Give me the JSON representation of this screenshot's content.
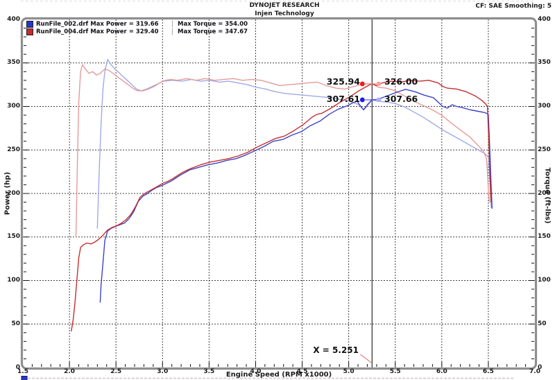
{
  "header": {
    "title": "DYNOJET RESEARCH",
    "subtitle": "Injen Technology",
    "correction": "CF: SAE  Smoothing: 5"
  },
  "legend": {
    "rows": [
      {
        "color": "#2a35c8",
        "file": "RunFile_002.drf",
        "max_power": "Max Power = 319.66",
        "max_torque": "Max Torque = 354.00"
      },
      {
        "color": "#cc2a2a",
        "file": "RunFile_004.drf",
        "max_power": "Max Power = 329.40",
        "max_torque": "Max Torque = 347.67"
      }
    ]
  },
  "chart_data": {
    "type": "line",
    "title": "",
    "x_axis": {
      "label": "Engine Speed (RPM x1000)",
      "min": 1.5,
      "max": 7.0,
      "major_step": 0.5,
      "minor_step": 0.1,
      "ticks": [
        "1.5",
        "2.0",
        "2.5",
        "3.0",
        "3.5",
        "4.0",
        "4.5",
        "5.0",
        "5.5",
        "6.0",
        "6.5",
        "7.0"
      ]
    },
    "y_axis_left": {
      "label": "Power (hp)",
      "min": 0,
      "max": 400,
      "major_step": 50,
      "minor_step": 10,
      "ticks": [
        "400",
        "350",
        "300",
        "250",
        "200",
        "150",
        "100",
        "50",
        "0"
      ]
    },
    "y_axis_right": {
      "label": "Torque (ft-lbs)",
      "min": 0,
      "max": 400,
      "major_step": 50,
      "minor_step": 10,
      "ticks": [
        "400",
        "350",
        "300",
        "250",
        "200",
        "150",
        "100",
        "50",
        "0"
      ]
    },
    "grid": "dashed major gridlines, both axes",
    "cursor": {
      "x": 5.251,
      "label": "X = 5.251",
      "readouts": [
        {
          "series": "RunFile_004.drf power (hp)",
          "value": 325.94,
          "display": "325.94",
          "dot_color": "#ee1c1c",
          "side": "left"
        },
        {
          "series": "RunFile_004.drf torque (ft-lbs)",
          "value": 326.0,
          "display": "326.00",
          "dot_color": "#f2a2a2",
          "side": "right"
        },
        {
          "series": "RunFile_002.drf power (hp)",
          "value": 307.61,
          "display": "307.61",
          "dot_color": "#1c1cee",
          "side": "left"
        },
        {
          "series": "RunFile_002.drf torque (ft-lbs)",
          "value": 307.66,
          "display": "307.66",
          "dot_color": "#a8b4f5",
          "side": "right"
        }
      ]
    },
    "series": [
      {
        "name": "RunFile_002.drf Torque",
        "unit": "ft-lbs",
        "max": 354.0,
        "color": "#9fa9e6",
        "points": [
          [
            2.3,
            160
          ],
          [
            2.32,
            225
          ],
          [
            2.34,
            280
          ],
          [
            2.36,
            320
          ],
          [
            2.38,
            340
          ],
          [
            2.41,
            354
          ],
          [
            2.44,
            349
          ],
          [
            2.48,
            344
          ],
          [
            2.52,
            340
          ],
          [
            2.56,
            336
          ],
          [
            2.6,
            332
          ],
          [
            2.64,
            328
          ],
          [
            2.68,
            324
          ],
          [
            2.72,
            320
          ],
          [
            2.77,
            318
          ],
          [
            2.83,
            320
          ],
          [
            2.89,
            323
          ],
          [
            2.95,
            326
          ],
          [
            3.01,
            329
          ],
          [
            3.11,
            330
          ],
          [
            3.21,
            329
          ],
          [
            3.31,
            331
          ],
          [
            3.41,
            329
          ],
          [
            3.51,
            330
          ],
          [
            3.61,
            328
          ],
          [
            3.71,
            329
          ],
          [
            3.81,
            327
          ],
          [
            3.91,
            325
          ],
          [
            4.01,
            322
          ],
          [
            4.11,
            320
          ],
          [
            4.21,
            317
          ],
          [
            4.31,
            315
          ],
          [
            4.41,
            314
          ],
          [
            4.51,
            313
          ],
          [
            4.61,
            312
          ],
          [
            4.71,
            311
          ],
          [
            4.81,
            310
          ],
          [
            4.91,
            308
          ],
          [
            5.01,
            306
          ],
          [
            5.06,
            304
          ],
          [
            5.11,
            302
          ],
          [
            5.14,
            298
          ],
          [
            5.17,
            297
          ],
          [
            5.21,
            302
          ],
          [
            5.251,
            307.66
          ],
          [
            5.31,
            306
          ],
          [
            5.41,
            305
          ],
          [
            5.51,
            303
          ],
          [
            5.61,
            299
          ],
          [
            5.71,
            293
          ],
          [
            5.81,
            287
          ],
          [
            5.91,
            280
          ],
          [
            6.01,
            273
          ],
          [
            6.11,
            267
          ],
          [
            6.21,
            261
          ],
          [
            6.31,
            255
          ],
          [
            6.41,
            249
          ],
          [
            6.46,
            246
          ],
          [
            6.5,
            242
          ],
          [
            6.51,
            228
          ],
          [
            6.52,
            208
          ],
          [
            6.53,
            184
          ]
        ]
      },
      {
        "name": "RunFile_004.drf Torque",
        "unit": "ft-lbs",
        "max": 347.67,
        "color": "#e69a9a",
        "points": [
          [
            2.07,
            150
          ],
          [
            2.08,
            205
          ],
          [
            2.09,
            258
          ],
          [
            2.1,
            305
          ],
          [
            2.12,
            340
          ],
          [
            2.14,
            348
          ],
          [
            2.17,
            343
          ],
          [
            2.21,
            338
          ],
          [
            2.25,
            340
          ],
          [
            2.29,
            336
          ],
          [
            2.33,
            338
          ],
          [
            2.38,
            343
          ],
          [
            2.43,
            341
          ],
          [
            2.48,
            337
          ],
          [
            2.53,
            333
          ],
          [
            2.58,
            329
          ],
          [
            2.63,
            325
          ],
          [
            2.68,
            321
          ],
          [
            2.73,
            318
          ],
          [
            2.79,
            318
          ],
          [
            2.85,
            320
          ],
          [
            2.91,
            323
          ],
          [
            2.97,
            327
          ],
          [
            3.03,
            330
          ],
          [
            3.09,
            331
          ],
          [
            3.16,
            330
          ],
          [
            3.26,
            332
          ],
          [
            3.36,
            330
          ],
          [
            3.46,
            332
          ],
          [
            3.56,
            330
          ],
          [
            3.66,
            331
          ],
          [
            3.76,
            332
          ],
          [
            3.86,
            330
          ],
          [
            3.96,
            331
          ],
          [
            4.06,
            330
          ],
          [
            4.16,
            327
          ],
          [
            4.26,
            324
          ],
          [
            4.36,
            325
          ],
          [
            4.46,
            326
          ],
          [
            4.56,
            327
          ],
          [
            4.66,
            328
          ],
          [
            4.76,
            324
          ],
          [
            4.86,
            321
          ],
          [
            4.96,
            320
          ],
          [
            5.06,
            323
          ],
          [
            5.16,
            326
          ],
          [
            5.251,
            326
          ],
          [
            5.32,
            322
          ],
          [
            5.4,
            321
          ],
          [
            5.5,
            318
          ],
          [
            5.6,
            312
          ],
          [
            5.7,
            306
          ],
          [
            5.8,
            301
          ],
          [
            5.9,
            296
          ],
          [
            6.0,
            290
          ],
          [
            6.1,
            281
          ],
          [
            6.2,
            273
          ],
          [
            6.3,
            265
          ],
          [
            6.4,
            254
          ],
          [
            6.45,
            248
          ],
          [
            6.48,
            240
          ],
          [
            6.49,
            225
          ],
          [
            6.5,
            205
          ],
          [
            6.51,
            190
          ]
        ]
      },
      {
        "name": "RunFile_002.drf Power",
        "unit": "hp",
        "max": 319.66,
        "color": "#3d42c4",
        "points": [
          [
            2.33,
            75
          ],
          [
            2.34,
            95
          ],
          [
            2.36,
            120
          ],
          [
            2.38,
            146
          ],
          [
            2.41,
            157
          ],
          [
            2.45,
            160
          ],
          [
            2.49,
            162
          ],
          [
            2.54,
            164
          ],
          [
            2.59,
            166
          ],
          [
            2.64,
            171
          ],
          [
            2.69,
            179
          ],
          [
            2.74,
            191
          ],
          [
            2.79,
            197
          ],
          [
            2.84,
            200
          ],
          [
            2.89,
            204
          ],
          [
            2.94,
            207
          ],
          [
            2.99,
            209
          ],
          [
            3.09,
            214
          ],
          [
            3.19,
            221
          ],
          [
            3.29,
            227
          ],
          [
            3.39,
            230
          ],
          [
            3.49,
            233
          ],
          [
            3.59,
            235
          ],
          [
            3.69,
            238
          ],
          [
            3.79,
            240
          ],
          [
            3.89,
            244
          ],
          [
            3.99,
            249
          ],
          [
            4.09,
            254
          ],
          [
            4.19,
            260
          ],
          [
            4.29,
            262
          ],
          [
            4.39,
            267
          ],
          [
            4.49,
            271
          ],
          [
            4.59,
            278
          ],
          [
            4.69,
            283
          ],
          [
            4.79,
            291
          ],
          [
            4.89,
            297
          ],
          [
            4.99,
            301
          ],
          [
            5.04,
            304
          ],
          [
            5.09,
            306
          ],
          [
            5.13,
            300
          ],
          [
            5.16,
            296
          ],
          [
            5.2,
            302
          ],
          [
            5.251,
            307.61
          ],
          [
            5.31,
            308
          ],
          [
            5.41,
            312
          ],
          [
            5.51,
            316
          ],
          [
            5.61,
            319.66
          ],
          [
            5.71,
            317
          ],
          [
            5.81,
            313
          ],
          [
            5.91,
            310
          ],
          [
            5.96,
            305
          ],
          [
            6.01,
            300
          ],
          [
            6.06,
            298
          ],
          [
            6.11,
            302
          ],
          [
            6.16,
            300
          ],
          [
            6.21,
            299
          ],
          [
            6.31,
            296
          ],
          [
            6.41,
            294
          ],
          [
            6.46,
            293
          ],
          [
            6.5,
            291
          ],
          [
            6.51,
            265
          ],
          [
            6.52,
            238
          ],
          [
            6.53,
            210
          ],
          [
            6.54,
            183
          ]
        ]
      },
      {
        "name": "RunFile_004.drf Power",
        "unit": "hp",
        "max": 329.4,
        "color": "#c22e2e",
        "points": [
          [
            2.02,
            42
          ],
          [
            2.04,
            55
          ],
          [
            2.06,
            75
          ],
          [
            2.08,
            100
          ],
          [
            2.1,
            126
          ],
          [
            2.12,
            138
          ],
          [
            2.15,
            141
          ],
          [
            2.19,
            143
          ],
          [
            2.23,
            142
          ],
          [
            2.27,
            144
          ],
          [
            2.31,
            147
          ],
          [
            2.36,
            152
          ],
          [
            2.41,
            158
          ],
          [
            2.46,
            161
          ],
          [
            2.51,
            163
          ],
          [
            2.56,
            166
          ],
          [
            2.61,
            170
          ],
          [
            2.66,
            176
          ],
          [
            2.71,
            185
          ],
          [
            2.76,
            196
          ],
          [
            2.81,
            200
          ],
          [
            2.86,
            203
          ],
          [
            2.91,
            206
          ],
          [
            2.96,
            209
          ],
          [
            3.01,
            212
          ],
          [
            3.06,
            214
          ],
          [
            3.11,
            217
          ],
          [
            3.21,
            224
          ],
          [
            3.31,
            229
          ],
          [
            3.41,
            233
          ],
          [
            3.51,
            236
          ],
          [
            3.61,
            238
          ],
          [
            3.71,
            240
          ],
          [
            3.81,
            243
          ],
          [
            3.91,
            247
          ],
          [
            4.01,
            253
          ],
          [
            4.11,
            258
          ],
          [
            4.21,
            263
          ],
          [
            4.31,
            266
          ],
          [
            4.41,
            272
          ],
          [
            4.51,
            279
          ],
          [
            4.61,
            288
          ],
          [
            4.66,
            291
          ],
          [
            4.71,
            292
          ],
          [
            4.81,
            298
          ],
          [
            4.91,
            305
          ],
          [
            5.01,
            311
          ],
          [
            5.11,
            318
          ],
          [
            5.21,
            324
          ],
          [
            5.251,
            325.94
          ],
          [
            5.3,
            324
          ],
          [
            5.36,
            327
          ],
          [
            5.46,
            329
          ],
          [
            5.56,
            328
          ],
          [
            5.66,
            330
          ],
          [
            5.76,
            329
          ],
          [
            5.86,
            330
          ],
          [
            5.96,
            327
          ],
          [
            6.01,
            323
          ],
          [
            6.06,
            321
          ],
          [
            6.16,
            320
          ],
          [
            6.26,
            317
          ],
          [
            6.36,
            312
          ],
          [
            6.43,
            307
          ],
          [
            6.47,
            303
          ],
          [
            6.49,
            300
          ],
          [
            6.5,
            275
          ],
          [
            6.51,
            245
          ],
          [
            6.52,
            212
          ],
          [
            6.53,
            190
          ]
        ]
      }
    ]
  }
}
